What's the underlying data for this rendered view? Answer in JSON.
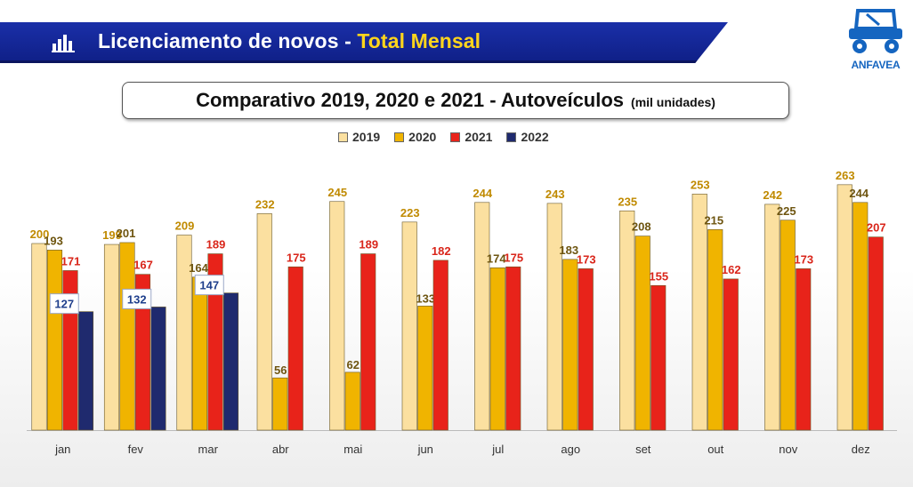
{
  "header": {
    "title_main": "Licenciamento de novos - ",
    "title_highlight": "Total Mensal",
    "icon": "bar-chart-icon"
  },
  "logo": {
    "text": "ANFAVEA",
    "icon": "tractor-truck-logo"
  },
  "subtitle": {
    "main": "Comparativo 2019, 2020 e 2021 - Autoveículos",
    "unit": "(mil unidades)"
  },
  "colors": {
    "header_bg": "#1327a0",
    "highlight": "#ffd51c",
    "label_2019": "#c08a00",
    "label_2020": "#6e5510",
    "label_2021": "#d9251a",
    "label_2022": "#1f3f8c"
  },
  "chart_data": {
    "type": "bar",
    "categories": [
      "jan",
      "fev",
      "mar",
      "abr",
      "mai",
      "jun",
      "jul",
      "ago",
      "set",
      "out",
      "nov",
      "dez"
    ],
    "series": [
      {
        "name": "2019",
        "color": "#fbe0a0",
        "values": [
          200,
          199,
          209,
          232,
          245,
          223,
          244,
          243,
          235,
          253,
          242,
          263
        ]
      },
      {
        "name": "2020",
        "color": "#f0b400",
        "values": [
          193,
          201,
          164,
          56,
          62,
          133,
          174,
          183,
          208,
          215,
          225,
          244
        ]
      },
      {
        "name": "2021",
        "color": "#e8231a",
        "values": [
          171,
          167,
          189,
          175,
          189,
          182,
          175,
          173,
          155,
          162,
          173,
          207
        ]
      },
      {
        "name": "2022",
        "color": "#1f2a6e",
        "values": [
          127,
          132,
          147,
          null,
          null,
          null,
          null,
          null,
          null,
          null,
          null,
          null
        ]
      }
    ],
    "xlabel": "",
    "ylabel": "",
    "ylim": [
      0,
      280
    ],
    "legend_position": "top",
    "grid": false
  }
}
